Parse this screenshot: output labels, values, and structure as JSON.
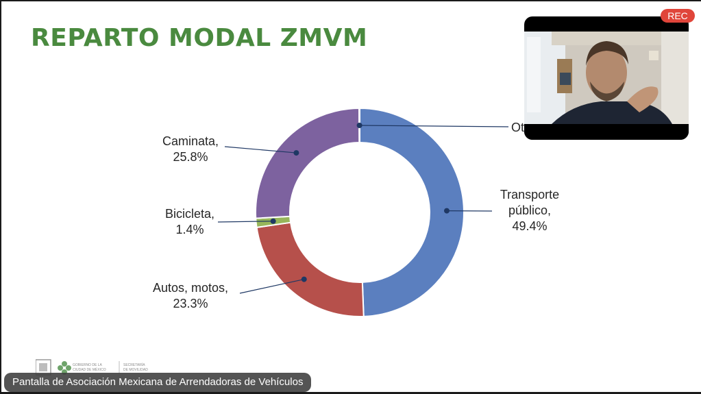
{
  "slide": {
    "title": "REPARTO MODAL ZMVM",
    "title_color": "#4a8a3f"
  },
  "chart_data": {
    "type": "pie",
    "variant": "donut",
    "slices": [
      {
        "label_lines": [
          "Transporte",
          "público,",
          "49.4%"
        ],
        "category": "Transporte público",
        "value": 49.4,
        "color": "#5b7fbf"
      },
      {
        "label_lines": [
          "Autos, motos,",
          "23.3%"
        ],
        "category": "Autos, motos",
        "value": 23.3,
        "color": "#b6504b"
      },
      {
        "label_lines": [
          "Bicicleta,",
          "1.4%"
        ],
        "category": "Bicicleta",
        "value": 1.4,
        "color": "#97b65a"
      },
      {
        "label_lines": [
          "Caminata,",
          "25.8%"
        ],
        "category": "Caminata",
        "value": 25.8,
        "color": "#7d629f"
      },
      {
        "label_lines": [
          "Ot"
        ],
        "category": "Otros",
        "value": 0.1,
        "color": "#4a6fb0"
      }
    ]
  },
  "video": {
    "rec_label": "REC",
    "rec_color": "#e0453a"
  },
  "logos": {
    "gov_line1": "GOBIERNO DE LA",
    "gov_line2": "CIUDAD DE MÉXICO",
    "sec_line1": "SECRETARÍA",
    "sec_line2": "DE MOVILIDAD"
  },
  "banner": {
    "text": "Pantalla de Asociación Mexicana de Arrendadoras de Vehículos"
  }
}
